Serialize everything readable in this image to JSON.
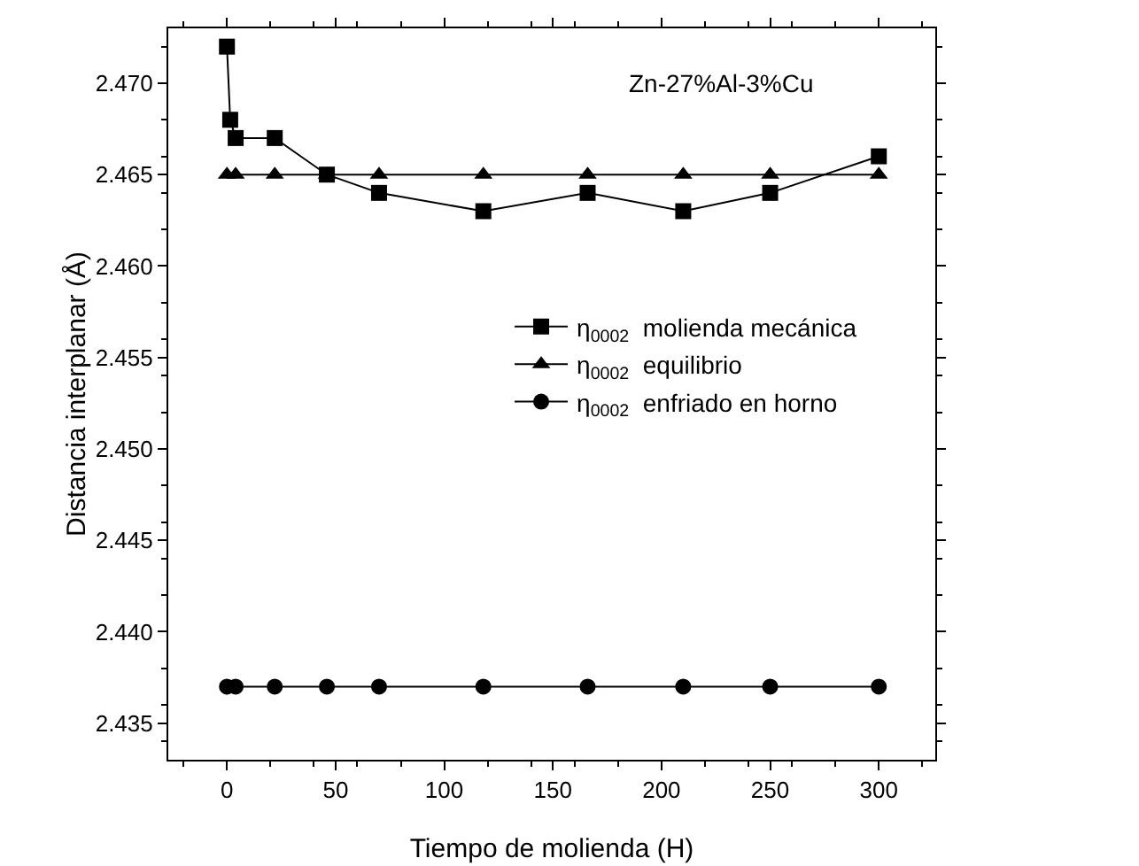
{
  "chart_data": {
    "type": "line",
    "xlabel": "Tiempo de molienda (H)",
    "ylabel": "Distancia interplanar (Å)",
    "annotations": [
      "Zn-27%Al-3%Cu"
    ],
    "xlim": [
      -27,
      326
    ],
    "xticks": [
      0,
      50,
      100,
      150,
      200,
      250,
      300
    ],
    "ylim": [
      2.433,
      2.473
    ],
    "yticks": [
      {
        "value": 2.435,
        "label": "2.435"
      },
      {
        "value": 2.44,
        "label": "2.440"
      },
      {
        "value": 2.445,
        "label": "2.445"
      },
      {
        "value": 2.45,
        "label": "2.450"
      },
      {
        "value": 2.455,
        "label": "2.455"
      },
      {
        "value": 2.46,
        "label": "2.460"
      },
      {
        "value": 2.465,
        "label": "2.465"
      },
      {
        "value": 2.47,
        "label": "2.470"
      }
    ],
    "grid": false,
    "legend": "right",
    "line_style": "solid",
    "series": [
      {
        "name": "η$_{0002}$  molienda mecánica",
        "color": "#000000",
        "marker": "square",
        "x": [
          0,
          1.5,
          4,
          22,
          46,
          70,
          118,
          166,
          210,
          250,
          300
        ],
        "values": [
          2.472,
          2.468,
          2.467,
          2.467,
          2.465,
          2.464,
          2.463,
          2.464,
          2.463,
          2.464,
          2.466
        ]
      },
      {
        "name": "η$_{0002}$  equilibrio",
        "color": "#000000",
        "marker": "triangle",
        "x": [
          0,
          4,
          22,
          46,
          70,
          118,
          166,
          210,
          250,
          300
        ],
        "values": [
          2.465,
          2.465,
          2.465,
          2.465,
          2.465,
          2.465,
          2.465,
          2.465,
          2.465,
          2.465
        ]
      },
      {
        "name": "η$_{0002}$  enfriado en horno",
        "color": "#000000",
        "marker": "circle",
        "x": [
          0,
          4,
          22,
          46,
          70,
          118,
          166,
          210,
          250,
          300
        ],
        "values": [
          2.437,
          2.437,
          2.437,
          2.437,
          2.437,
          2.437,
          2.437,
          2.437,
          2.437,
          2.437
        ]
      }
    ]
  }
}
